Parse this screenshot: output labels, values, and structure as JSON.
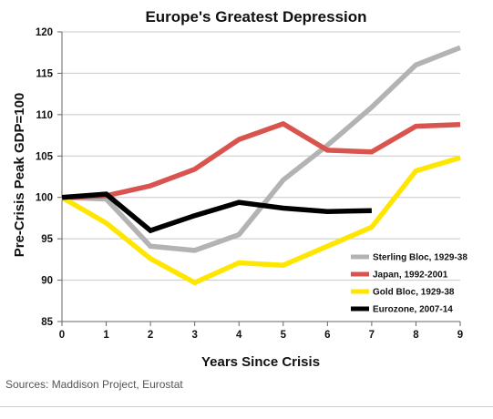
{
  "chart_data": {
    "type": "line",
    "title": "Europe's Greatest Depression",
    "xlabel": "Years Since Crisis",
    "ylabel": "Pre-Crisis Peak GDP=100",
    "xlim": [
      0,
      9
    ],
    "ylim": [
      85,
      120
    ],
    "xticks": [
      0,
      1,
      2,
      3,
      4,
      5,
      6,
      7,
      8,
      9
    ],
    "yticks": [
      85,
      90,
      95,
      100,
      105,
      110,
      115,
      120
    ],
    "grid": "horizontal",
    "legend_position": "bottom-right",
    "series": [
      {
        "name": "Sterling Bloc, 1929-38",
        "color": "#b3b3b3",
        "x": [
          0,
          1,
          2,
          3,
          4,
          5,
          6,
          7,
          8,
          9
        ],
        "y": [
          100,
          99.8,
          94.1,
          93.6,
          95.5,
          102.1,
          106.3,
          110.9,
          116.0,
          118.1
        ]
      },
      {
        "name": "Japan, 1992-2001",
        "color": "#d9534f",
        "x": [
          0,
          1,
          2,
          3,
          4,
          5,
          6,
          7,
          8,
          9
        ],
        "y": [
          100,
          100.2,
          101.4,
          103.4,
          107.0,
          108.9,
          105.7,
          105.5,
          108.6,
          108.8
        ]
      },
      {
        "name": "Gold Bloc, 1929-38",
        "color": "#ffe600",
        "x": [
          0,
          1,
          2,
          3,
          4,
          5,
          6,
          7,
          8,
          9
        ],
        "y": [
          100,
          96.9,
          92.6,
          89.7,
          92.1,
          91.8,
          94.1,
          96.4,
          103.2,
          104.8
        ]
      },
      {
        "name": "Eurozone, 2007-14",
        "color": "#000000",
        "x": [
          0,
          1,
          2,
          3,
          4,
          5,
          6,
          7
        ],
        "y": [
          100,
          100.4,
          96.0,
          97.8,
          99.4,
          98.7,
          98.3,
          98.4
        ]
      }
    ]
  },
  "source": "Sources: Maddison Project, Eurostat"
}
